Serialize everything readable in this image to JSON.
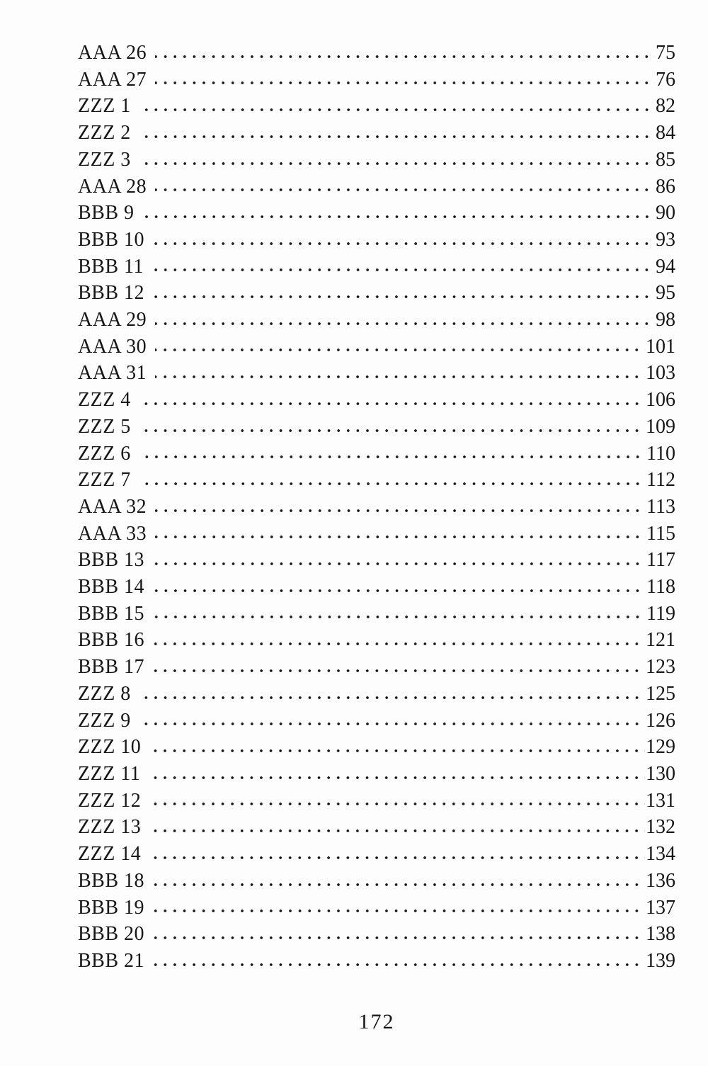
{
  "colors": {
    "background": "#fdfdfd",
    "text": "#161616"
  },
  "toc": {
    "entries": [
      {
        "label": "AAA 26",
        "page": "75"
      },
      {
        "label": "AAA 27",
        "page": "76"
      },
      {
        "label": "ZZZ 1",
        "page": "82"
      },
      {
        "label": "ZZZ 2",
        "page": "84"
      },
      {
        "label": "ZZZ 3",
        "page": "85"
      },
      {
        "label": "AAA 28",
        "page": "86"
      },
      {
        "label": "BBB 9",
        "page": "90"
      },
      {
        "label": "BBB 10",
        "page": "93"
      },
      {
        "label": "BBB 11",
        "page": "94"
      },
      {
        "label": "BBB 12",
        "page": "95"
      },
      {
        "label": "AAA 29",
        "page": "98"
      },
      {
        "label": "AAA 30",
        "page": "101"
      },
      {
        "label": "AAA 31",
        "page": "103"
      },
      {
        "label": "ZZZ 4",
        "page": "106"
      },
      {
        "label": "ZZZ 5",
        "page": "109"
      },
      {
        "label": "ZZZ 6",
        "page": "110"
      },
      {
        "label": "ZZZ 7",
        "page": "112"
      },
      {
        "label": "AAA 32",
        "page": "113"
      },
      {
        "label": "AAA 33",
        "page": "115"
      },
      {
        "label": "BBB 13",
        "page": "117"
      },
      {
        "label": "BBB 14",
        "page": "118"
      },
      {
        "label": "BBB 15",
        "page": "119"
      },
      {
        "label": "BBB 16",
        "page": "121"
      },
      {
        "label": "BBB 17",
        "page": "123"
      },
      {
        "label": "ZZZ 8",
        "page": "125"
      },
      {
        "label": "ZZZ 9",
        "page": "126"
      },
      {
        "label": "ZZZ 10",
        "page": "129"
      },
      {
        "label": "ZZZ 11",
        "page": "130"
      },
      {
        "label": "ZZZ 12",
        "page": "131"
      },
      {
        "label": "ZZZ 13",
        "page": "132"
      },
      {
        "label": "ZZZ 14",
        "page": "134"
      },
      {
        "label": "BBB 18",
        "page": "136"
      },
      {
        "label": "BBB 19",
        "page": "137"
      },
      {
        "label": "BBB 20",
        "page": "138"
      },
      {
        "label": "BBB 21",
        "page": "139"
      }
    ]
  },
  "footer": {
    "page_number": "172"
  }
}
